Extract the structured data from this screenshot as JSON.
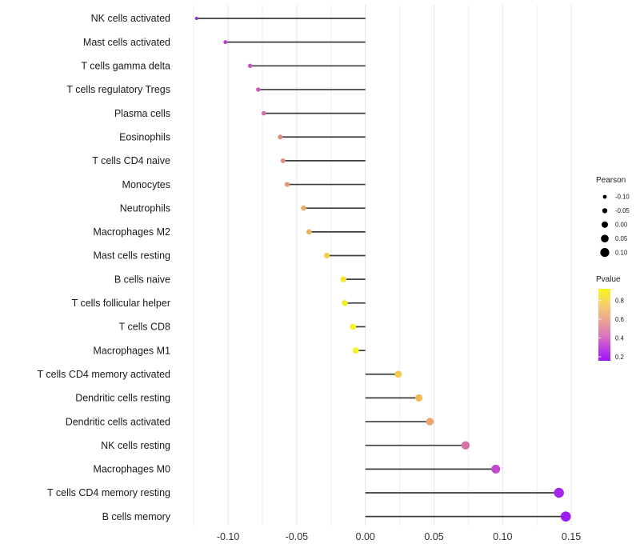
{
  "chart_data": {
    "type": "scatter",
    "subtype": "lollipop",
    "title": "",
    "xlabel": "",
    "ylabel": "",
    "xlim": [
      -0.139,
      0.158
    ],
    "grid": "vertical-only",
    "gridline_step": 0.025,
    "x_ticks": [
      "-0.10",
      "-0.05",
      "0.00",
      "0.05",
      "0.10",
      "0.15"
    ],
    "x_tick_values": [
      -0.1,
      -0.05,
      0.0,
      0.05,
      0.1,
      0.15
    ],
    "categories": [
      "NK cells activated",
      "Mast cells activated",
      "T cells gamma delta",
      "T cells regulatory  Tregs",
      "Plasma cells",
      "Eosinophils",
      "T cells CD4 naive",
      "Monocytes",
      "Neutrophils",
      "Macrophages M2",
      "Mast cells resting",
      "B cells naive",
      "T cells follicular helper",
      "T cells CD8",
      "Macrophages M1",
      "T cells CD4 memory activated",
      "Dendritic cells resting",
      "Dendritic cells activated",
      "NK cells resting",
      "Macrophages M0",
      "T cells CD4 memory resting",
      "B cells memory"
    ],
    "series": [
      {
        "name": "Pearson",
        "values": [
          -0.123,
          -0.102,
          -0.084,
          -0.078,
          -0.074,
          -0.062,
          -0.06,
          -0.057,
          -0.045,
          -0.041,
          -0.028,
          -0.016,
          -0.015,
          -0.009,
          -0.007,
          0.024,
          0.039,
          0.047,
          0.073,
          0.095,
          0.141,
          0.146
        ]
      },
      {
        "name": "Pvalue",
        "values": [
          0.2,
          0.28,
          0.38,
          0.42,
          0.45,
          0.55,
          0.56,
          0.58,
          0.65,
          0.66,
          0.78,
          0.86,
          0.87,
          0.92,
          0.93,
          0.77,
          0.7,
          0.62,
          0.44,
          0.33,
          0.23,
          0.21
        ]
      }
    ],
    "dot_colors": [
      "#9430DA",
      "#AC3CD0",
      "#C452C2",
      "#CB5DB8",
      "#D56FA8",
      "#E2897F",
      "#E48E7B",
      "#E69377",
      "#EBAD68",
      "#ECB163",
      "#F2CE46",
      "#F6E72E",
      "#F7EB28",
      "#F9F220",
      "#F9F31E",
      "#F3CB49",
      "#EFB957",
      "#ECA46D",
      "#DB70A6",
      "#C148CE",
      "#A228EE",
      "#9D1FF0"
    ],
    "legend_size": {
      "title": "Pearson",
      "labels": [
        "-0.10",
        "-0.05",
        "0.00",
        "0.05",
        "0.10"
      ],
      "values": [
        -0.1,
        -0.05,
        0.0,
        0.05,
        0.1
      ],
      "dot_color": "#000000",
      "position": "right"
    },
    "legend_color": {
      "title": "Pvalue",
      "labels": [
        "0.8",
        "0.6",
        "0.4",
        "0.2"
      ],
      "label_values": [
        0.8,
        0.6,
        0.4,
        0.2
      ],
      "range": [
        0.17,
        0.95
      ],
      "gradient": [
        {
          "o": 0.0,
          "c": "#FAF418"
        },
        {
          "o": 0.1,
          "c": "#F8E446"
        },
        {
          "o": 0.22,
          "c": "#F4D06C"
        },
        {
          "o": 0.38,
          "c": "#EDB18A"
        },
        {
          "o": 0.52,
          "c": "#E293A4"
        },
        {
          "o": 0.66,
          "c": "#D873BE"
        },
        {
          "o": 0.8,
          "c": "#C24AD8"
        },
        {
          "o": 0.92,
          "c": "#AA28EE"
        },
        {
          "o": 1.0,
          "c": "#9E19F2"
        }
      ],
      "position": "right"
    }
  },
  "colors": {
    "background": "#FFFFFF",
    "stem": "#3C3C3C",
    "grid_major": "#E3E3E3",
    "grid_minor": "#EFEFEF",
    "category_text": "#1A1A1A",
    "axis_text": "#333333",
    "legend_text": "#1A1A1A"
  }
}
